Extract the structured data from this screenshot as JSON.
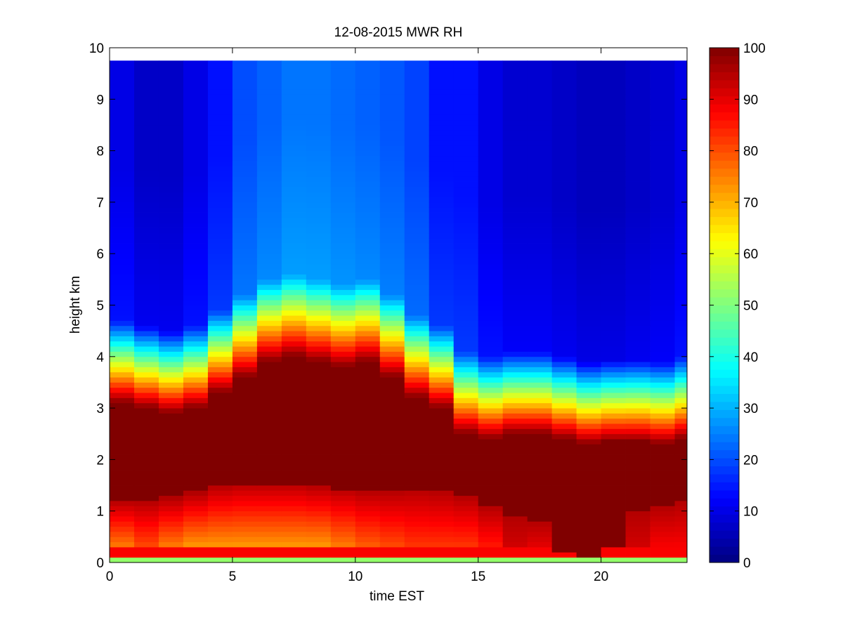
{
  "chart_data": {
    "type": "heatmap",
    "title": "12-08-2015 MWR RH",
    "xlabel": "time EST",
    "ylabel": "height km",
    "xlim": [
      0,
      23.5
    ],
    "ylim": [
      0,
      10
    ],
    "xticks": [
      0,
      5,
      10,
      15,
      20
    ],
    "yticks": [
      0,
      1,
      2,
      3,
      4,
      5,
      6,
      7,
      8,
      9,
      10
    ],
    "colormap": "jet",
    "colorbar": {
      "range": [
        0,
        100
      ],
      "ticks": [
        0,
        10,
        20,
        30,
        40,
        50,
        60,
        70,
        80,
        90,
        100
      ]
    },
    "x_centers_hours": [
      0.5,
      1.5,
      2.5,
      3.5,
      4.5,
      5.5,
      6.5,
      7.5,
      8.5,
      9.5,
      10.5,
      11.5,
      12.5,
      13.5,
      14.5,
      15.5,
      16.5,
      17.5,
      18.5,
      19.5,
      20.5,
      21.5,
      22.5,
      23.5
    ],
    "height_top_km": 9.75,
    "column_profiles": [
      {
        "time": 0.5,
        "top": 8,
        "cloud_top_km": 3.1,
        "lower_edge_km": 1.2,
        "low_rh": 75
      },
      {
        "time": 1.5,
        "top": 5,
        "cloud_top_km": 3.0,
        "lower_edge_km": 1.2,
        "low_rh": 80
      },
      {
        "time": 2.5,
        "top": 5,
        "cloud_top_km": 2.9,
        "lower_edge_km": 1.25,
        "low_rh": 75
      },
      {
        "time": 3.5,
        "top": 8,
        "cloud_top_km": 3.0,
        "lower_edge_km": 1.35,
        "low_rh": 72
      },
      {
        "time": 4.5,
        "top": 12,
        "cloud_top_km": 3.3,
        "lower_edge_km": 1.5,
        "low_rh": 72
      },
      {
        "time": 5.5,
        "top": 18,
        "cloud_top_km": 3.6,
        "lower_edge_km": 1.55,
        "low_rh": 72
      },
      {
        "time": 6.5,
        "top": 20,
        "cloud_top_km": 3.9,
        "lower_edge_km": 1.55,
        "low_rh": 72
      },
      {
        "time": 7.5,
        "top": 22,
        "cloud_top_km": 4.0,
        "lower_edge_km": 1.55,
        "low_rh": 72
      },
      {
        "time": 8.5,
        "top": 22,
        "cloud_top_km": 3.9,
        "lower_edge_km": 1.5,
        "low_rh": 72
      },
      {
        "time": 9.5,
        "top": 21,
        "cloud_top_km": 3.8,
        "lower_edge_km": 1.45,
        "low_rh": 75
      },
      {
        "time": 10.5,
        "top": 20,
        "cloud_top_km": 3.9,
        "lower_edge_km": 1.4,
        "low_rh": 78
      },
      {
        "time": 11.5,
        "top": 19,
        "cloud_top_km": 3.6,
        "lower_edge_km": 1.4,
        "low_rh": 80
      },
      {
        "time": 12.5,
        "top": 17,
        "cloud_top_km": 3.2,
        "lower_edge_km": 1.45,
        "low_rh": 82
      },
      {
        "time": 13.5,
        "top": 12,
        "cloud_top_km": 3.0,
        "lower_edge_km": 1.4,
        "low_rh": 82
      },
      {
        "time": 14.5,
        "top": 12,
        "cloud_top_km": 2.5,
        "lower_edge_km": 1.3,
        "low_rh": 82
      },
      {
        "time": 15.5,
        "top": 8,
        "cloud_top_km": 2.4,
        "lower_edge_km": 1.1,
        "low_rh": 85
      },
      {
        "time": 16.5,
        "top": 6,
        "cloud_top_km": 2.5,
        "lower_edge_km": 0.9,
        "low_rh": 92
      },
      {
        "time": 17.5,
        "top": 6,
        "cloud_top_km": 2.5,
        "lower_edge_km": 0.8,
        "low_rh": 90
      },
      {
        "time": 18.5,
        "top": 5,
        "cloud_top_km": 2.4,
        "lower_edge_km": 0.2,
        "low_rh": 95
      },
      {
        "time": 19.5,
        "top": 4,
        "cloud_top_km": 2.3,
        "lower_edge_km": 0.15,
        "low_rh": 97
      },
      {
        "time": 20.5,
        "top": 4,
        "cloud_top_km": 2.35,
        "lower_edge_km": 0.3,
        "low_rh": 97
      },
      {
        "time": 21.5,
        "top": 5,
        "cloud_top_km": 2.35,
        "lower_edge_km": 1.0,
        "low_rh": 92
      },
      {
        "time": 22.5,
        "top": 6,
        "cloud_top_km": 2.3,
        "lower_edge_km": 1.1,
        "low_rh": 88
      },
      {
        "time": 23.5,
        "top": 8,
        "cloud_top_km": 2.4,
        "lower_edge_km": 1.2,
        "low_rh": 88
      }
    ]
  }
}
